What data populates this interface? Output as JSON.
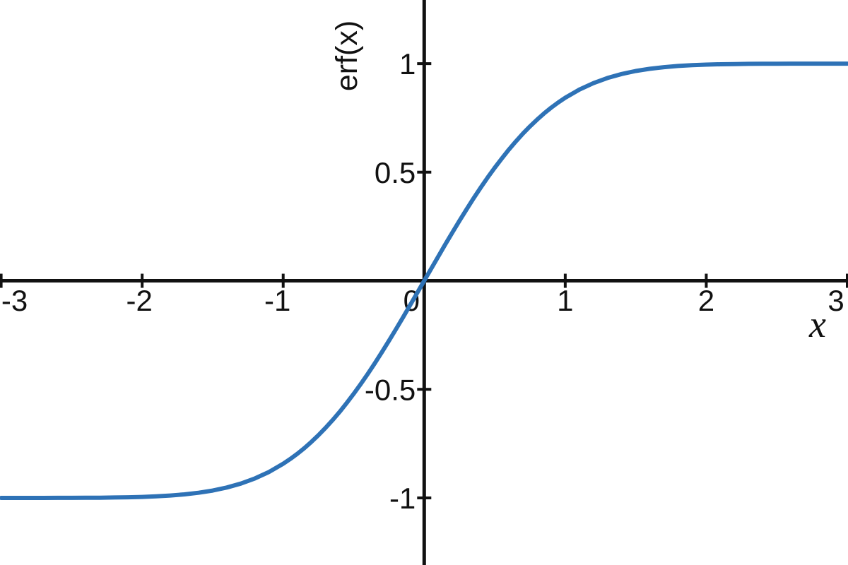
{
  "chart_data": {
    "type": "line",
    "title": "",
    "xlabel": "x",
    "ylabel": "erf(x)",
    "xlim": [
      -3.008,
      3.005
    ],
    "ylim": [
      -1.309,
      1.293
    ],
    "grid": false,
    "legend_position": "none",
    "background_color": "#ffffff",
    "axis_color": "#111111",
    "x_ticks": [
      {
        "value": -3,
        "label": "-3",
        "dx": 19,
        "tick": true
      },
      {
        "value": -2,
        "label": "-2",
        "dx": -4,
        "tick": true
      },
      {
        "value": -1,
        "label": "-1",
        "dx": -8,
        "tick": true
      },
      {
        "value": 0,
        "label": "0",
        "dx": -18,
        "tick": false
      },
      {
        "value": 1,
        "label": "1",
        "dx": 0,
        "tick": true
      },
      {
        "value": 2,
        "label": "2",
        "dx": 0,
        "tick": true
      },
      {
        "value": 3,
        "label": "3",
        "dx": -16,
        "tick": true
      }
    ],
    "y_ticks": [
      {
        "value": -1,
        "label": "-1",
        "tick": true
      },
      {
        "value": -0.5,
        "label": "-0.5",
        "tick": true
      },
      {
        "value": 0.5,
        "label": "0.5",
        "tick": true
      },
      {
        "value": 1,
        "label": "1",
        "tick": true
      }
    ],
    "series": [
      {
        "name": "erf",
        "color": "#2e72b6",
        "stroke_width": 6,
        "x": [
          -3,
          -2.9,
          -2.8,
          -2.7,
          -2.6,
          -2.5,
          -2.4,
          -2.3,
          -2.2,
          -2.1,
          -2,
          -1.9,
          -1.8,
          -1.7,
          -1.6,
          -1.5,
          -1.4,
          -1.3,
          -1.2,
          -1.1,
          -1,
          -0.95,
          -0.9,
          -0.85,
          -0.8,
          -0.75,
          -0.7,
          -0.65,
          -0.6,
          -0.55,
          -0.5,
          -0.45,
          -0.4,
          -0.35,
          -0.3,
          -0.25,
          -0.2,
          -0.15,
          -0.1,
          -0.05,
          0,
          0.05,
          0.1,
          0.15,
          0.2,
          0.25,
          0.3,
          0.35,
          0.4,
          0.45,
          0.5,
          0.55,
          0.6,
          0.65,
          0.7,
          0.75,
          0.8,
          0.85,
          0.9,
          0.95,
          1,
          1.1,
          1.2,
          1.3,
          1.4,
          1.5,
          1.6,
          1.7,
          1.8,
          1.9,
          2,
          2.1,
          2.2,
          2.3,
          2.4,
          2.5,
          2.6,
          2.7,
          2.8,
          2.9,
          3
        ],
        "y": [
          -1,
          -1,
          -0.9999,
          -0.9999,
          -0.9998,
          -0.9996,
          -0.9993,
          -0.9989,
          -0.9981,
          -0.997,
          -0.9953,
          -0.9928,
          -0.9891,
          -0.9838,
          -0.9763,
          -0.9661,
          -0.9523,
          -0.934,
          -0.9103,
          -0.8802,
          -0.8427,
          -0.8209,
          -0.7969,
          -0.7707,
          -0.7421,
          -0.7112,
          -0.6778,
          -0.642,
          -0.6039,
          -0.5633,
          -0.5205,
          -0.4755,
          -0.4284,
          -0.3794,
          -0.3286,
          -0.2763,
          -0.2227,
          -0.168,
          -0.1125,
          -0.0564,
          0,
          0.0564,
          0.1125,
          0.168,
          0.2227,
          0.2763,
          0.3286,
          0.3794,
          0.4284,
          0.4755,
          0.5205,
          0.5633,
          0.6039,
          0.642,
          0.6778,
          0.7112,
          0.7421,
          0.7707,
          0.7969,
          0.8209,
          0.8427,
          0.8802,
          0.9103,
          0.934,
          0.9523,
          0.9661,
          0.9763,
          0.9838,
          0.9891,
          0.9928,
          0.9953,
          0.997,
          0.9981,
          0.9989,
          0.9993,
          0.9996,
          0.9998,
          0.9999,
          0.9999,
          1,
          1
        ]
      }
    ]
  }
}
